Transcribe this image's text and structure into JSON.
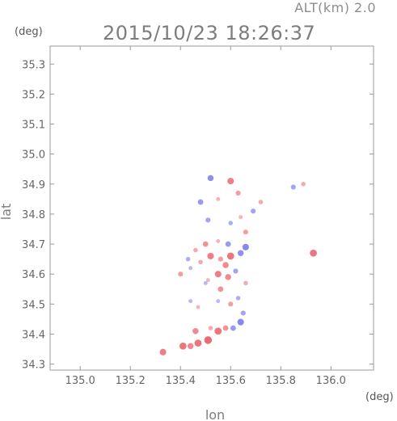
{
  "header": {
    "alt_label": "ALT(km) 2.0",
    "timestamp": "2015/10/23 18:26:37"
  },
  "chart_data": {
    "type": "scatter",
    "title": "2015/10/23 18:26:37",
    "subtitle": "ALT(km) 2.0",
    "xlabel": "lon",
    "ylabel": "lat",
    "xunit": "(deg)",
    "yunit": "(deg)",
    "xlim": [
      134.88,
      136.17
    ],
    "ylim": [
      34.28,
      35.36
    ],
    "xticks": [
      135.0,
      135.2,
      135.4,
      135.6,
      135.8,
      136.0
    ],
    "yticks": [
      34.3,
      34.4,
      34.5,
      34.6,
      34.7,
      34.8,
      34.9,
      35.0,
      35.1,
      35.2,
      35.3
    ],
    "xtick_labels": [
      "135.0",
      "135.2",
      "135.4",
      "135.6",
      "135.8",
      "136.0"
    ],
    "ytick_labels": [
      "34.3",
      "34.4",
      "34.5",
      "34.6",
      "34.7",
      "34.8",
      "34.9",
      "35.0",
      "35.1",
      "35.2",
      "35.3"
    ],
    "grid": false,
    "colors": {
      "positive": "#e8505a",
      "negative": "#5a5ae8",
      "neutral": "#d8d8f0",
      "axis": "#999999"
    },
    "points": [
      {
        "lon": 135.33,
        "lat": 34.34,
        "v": 0.8
      },
      {
        "lon": 135.41,
        "lat": 34.36,
        "v": 0.9
      },
      {
        "lon": 135.44,
        "lat": 34.36,
        "v": 0.7
      },
      {
        "lon": 135.47,
        "lat": 34.37,
        "v": 0.9
      },
      {
        "lon": 135.51,
        "lat": 34.38,
        "v": 1.0
      },
      {
        "lon": 135.55,
        "lat": 34.41,
        "v": 0.9
      },
      {
        "lon": 135.58,
        "lat": 34.42,
        "v": 0.6
      },
      {
        "lon": 135.61,
        "lat": 34.42,
        "v": -0.6
      },
      {
        "lon": 135.64,
        "lat": 34.44,
        "v": -0.8
      },
      {
        "lon": 135.65,
        "lat": 34.47,
        "v": -0.5
      },
      {
        "lon": 135.52,
        "lat": 34.42,
        "v": 0.4
      },
      {
        "lon": 135.46,
        "lat": 34.41,
        "v": 0.7
      },
      {
        "lon": 135.47,
        "lat": 34.49,
        "v": 0.3
      },
      {
        "lon": 135.55,
        "lat": 34.51,
        "v": -0.3
      },
      {
        "lon": 135.6,
        "lat": 34.5,
        "v": 0.5
      },
      {
        "lon": 135.63,
        "lat": 34.52,
        "v": -0.4
      },
      {
        "lon": 135.56,
        "lat": 34.55,
        "v": 0.6
      },
      {
        "lon": 135.51,
        "lat": 34.58,
        "v": 0.3
      },
      {
        "lon": 135.55,
        "lat": 34.6,
        "v": 0.8
      },
      {
        "lon": 135.59,
        "lat": 34.59,
        "v": 0.7
      },
      {
        "lon": 135.62,
        "lat": 34.61,
        "v": -0.5
      },
      {
        "lon": 135.44,
        "lat": 34.62,
        "v": -0.3
      },
      {
        "lon": 135.48,
        "lat": 34.64,
        "v": 0.4
      },
      {
        "lon": 135.52,
        "lat": 34.66,
        "v": 0.8
      },
      {
        "lon": 135.56,
        "lat": 34.65,
        "v": 0.5
      },
      {
        "lon": 135.6,
        "lat": 34.66,
        "v": 0.9
      },
      {
        "lon": 135.64,
        "lat": 34.67,
        "v": -0.7
      },
      {
        "lon": 135.66,
        "lat": 34.69,
        "v": -0.8
      },
      {
        "lon": 135.5,
        "lat": 34.7,
        "v": 0.6
      },
      {
        "lon": 135.55,
        "lat": 34.71,
        "v": 0.3
      },
      {
        "lon": 135.59,
        "lat": 34.7,
        "v": -0.6
      },
      {
        "lon": 135.46,
        "lat": 34.68,
        "v": 0.4
      },
      {
        "lon": 135.43,
        "lat": 34.65,
        "v": -0.4
      },
      {
        "lon": 135.58,
        "lat": 34.63,
        "v": 0.7
      },
      {
        "lon": 135.5,
        "lat": 34.57,
        "v": -0.3
      },
      {
        "lon": 135.66,
        "lat": 34.57,
        "v": 0.4
      },
      {
        "lon": 135.66,
        "lat": 34.74,
        "v": 0.5
      },
      {
        "lon": 135.6,
        "lat": 34.77,
        "v": -0.4
      },
      {
        "lon": 135.64,
        "lat": 34.79,
        "v": 0.3
      },
      {
        "lon": 135.69,
        "lat": 34.81,
        "v": -0.5
      },
      {
        "lon": 135.72,
        "lat": 34.84,
        "v": 0.4
      },
      {
        "lon": 135.51,
        "lat": 34.78,
        "v": -0.5
      },
      {
        "lon": 135.48,
        "lat": 34.84,
        "v": -0.6
      },
      {
        "lon": 135.55,
        "lat": 34.85,
        "v": 0.3
      },
      {
        "lon": 135.63,
        "lat": 34.87,
        "v": 0.5
      },
      {
        "lon": 135.6,
        "lat": 34.91,
        "v": 0.8
      },
      {
        "lon": 135.52,
        "lat": 34.92,
        "v": -0.7
      },
      {
        "lon": 135.85,
        "lat": 34.89,
        "v": -0.5
      },
      {
        "lon": 135.89,
        "lat": 34.9,
        "v": 0.4
      },
      {
        "lon": 135.93,
        "lat": 34.67,
        "v": 0.9
      },
      {
        "lon": 135.4,
        "lat": 34.6,
        "v": 0.5
      },
      {
        "lon": 135.44,
        "lat": 34.51,
        "v": -0.3
      }
    ]
  }
}
